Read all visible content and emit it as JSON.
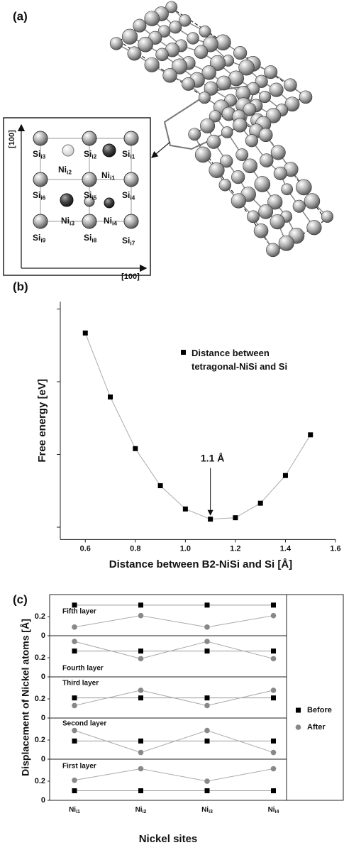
{
  "figure_a": {
    "label": "(a)",
    "inset": {
      "axis_y": "[100]",
      "axis_x": "[100]",
      "sites": [
        {
          "base": "Si",
          "sub": "i3"
        },
        {
          "base": "Si",
          "sub": "i2"
        },
        {
          "base": "Si",
          "sub": "i1"
        },
        {
          "base": "Ni",
          "sub": "i2"
        },
        {
          "base": "Ni",
          "sub": "i1"
        },
        {
          "base": "Si",
          "sub": "i6"
        },
        {
          "base": "Si",
          "sub": "i5"
        },
        {
          "base": "Si",
          "sub": "i4"
        },
        {
          "base": "Ni",
          "sub": "i3"
        },
        {
          "base": "Ni",
          "sub": "i4"
        },
        {
          "base": "Si",
          "sub": "i9"
        },
        {
          "base": "Si",
          "sub": "i8"
        },
        {
          "base": "Si",
          "sub": "i7"
        }
      ]
    }
  },
  "chart_data": [
    {
      "type": "line",
      "panel_label": "(b)",
      "x": [
        0.6,
        0.7,
        0.8,
        0.9,
        1.0,
        1.1,
        1.2,
        1.3,
        1.4,
        1.5
      ],
      "series": [
        {
          "name": "Distance between tetragonal-NiSi and Si",
          "color": "#000000",
          "line_color": "#aaaaaa",
          "values": [
            2.67,
            1.79,
            1.08,
            0.57,
            0.25,
            0.11,
            0.13,
            0.33,
            0.71,
            1.27
          ]
        }
      ],
      "xlim": [
        0.5,
        1.6
      ],
      "xticks": [
        0.6,
        0.8,
        {
          "value": 1,
          "label": "1.0"
        },
        1.2,
        1.4,
        1.6
      ],
      "ylim": [
        -0.17,
        3.1
      ],
      "yticks": [
        0,
        1,
        2,
        3
      ],
      "ytick_labels": false,
      "xlabel": "Distance between B2-NiSi and Si [Å]",
      "ylabel": "Free energy [eV]",
      "annotation": "1.1 Å",
      "legend": "upper right"
    },
    {
      "type": "line",
      "panel_label": "(c)",
      "categories": [
        {
          "base": "Ni",
          "sub": "i1"
        },
        {
          "base": "Ni",
          "sub": "i2"
        },
        {
          "base": "Ni",
          "sub": "i3"
        },
        {
          "base": "Ni",
          "sub": "i4"
        }
      ],
      "panels": [
        "Fifth layer",
        "Fourth layer",
        "Third layer",
        "Second layer",
        "First layer"
      ],
      "series": [
        {
          "name": "Before",
          "color": "#000000",
          "marker": "square",
          "values": [
            [
              0.32,
              0.32,
              0.32,
              0.32
            ],
            [
              0.27,
              0.27,
              0.27,
              0.27
            ],
            [
              0.21,
              0.21,
              0.21,
              0.21
            ],
            [
              0.19,
              0.19,
              0.19,
              0.19
            ],
            [
              0.1,
              0.1,
              0.1,
              0.1
            ]
          ]
        },
        {
          "name": "After",
          "color": "#888888",
          "marker": "circle",
          "values": [
            [
              0.09,
              0.21,
              0.09,
              0.21
            ],
            [
              0.37,
              0.19,
              0.37,
              0.19
            ],
            [
              0.13,
              0.29,
              0.13,
              0.29
            ],
            [
              0.3,
              0.07,
              0.3,
              0.07
            ],
            [
              0.21,
              0.33,
              0.2,
              0.33
            ]
          ]
        }
      ],
      "ylim": [
        0,
        0.43
      ],
      "yticks": [
        0,
        0.2
      ],
      "xlabel": "Nickel sites",
      "ylabel": "Displacement of Nickel atoms [Å]",
      "legend": "right"
    }
  ]
}
